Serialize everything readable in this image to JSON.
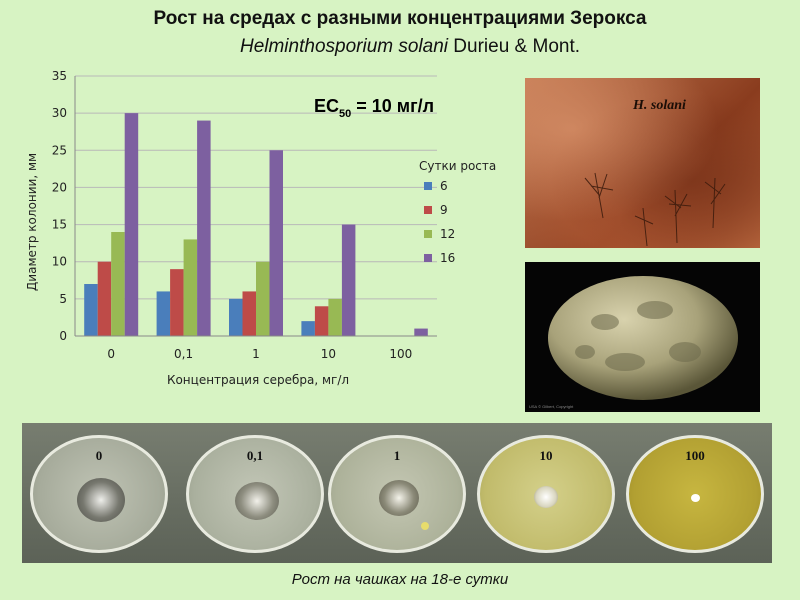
{
  "header": {
    "title": "Рост на средах с разными концентрациями Зерокса",
    "species": "Helminthosporium solani",
    "authority": "Durieu & Mont."
  },
  "chart_data": {
    "type": "bar",
    "categories": [
      "0",
      "0,1",
      "1",
      "10",
      "100"
    ],
    "series": [
      {
        "name": "6",
        "color": "#4a7ebb",
        "values": [
          7,
          6,
          5,
          2,
          0
        ]
      },
      {
        "name": "9",
        "color": "#be4b48",
        "values": [
          10,
          9,
          6,
          4,
          0
        ]
      },
      {
        "name": "12",
        "color": "#98b954",
        "values": [
          14,
          13,
          10,
          5,
          0
        ]
      },
      {
        "name": "16",
        "color": "#7d60a0",
        "values": [
          30,
          29,
          25,
          15,
          1
        ]
      }
    ],
    "ylim": [
      0,
      35
    ],
    "yticks": [
      "0",
      "5",
      "10",
      "15",
      "20",
      "25",
      "30",
      "35"
    ],
    "xlabel": "Концентрация серебра, мг/л",
    "ylabel": "Диаметр колонии, мм",
    "legend_title": "Сутки роста",
    "legend_position": "right",
    "grid": true,
    "annotation": {
      "main": "EC",
      "sub": "50",
      "rest": " = 10 мг/л"
    }
  },
  "photos": {
    "top_label": "H. solani",
    "potato_caption": "USA © Gilbert, Copyright"
  },
  "plates": {
    "labels": [
      "0",
      "0,1",
      "1",
      "10",
      "100"
    ],
    "caption": "Рост на чашках на 18-е сутки"
  }
}
